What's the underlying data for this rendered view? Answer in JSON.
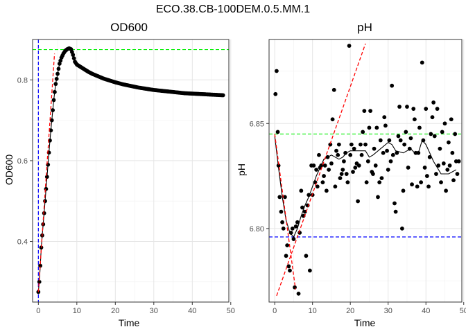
{
  "figure": {
    "title": "ECO.38.CB-100DEM.0.5.MM.1"
  },
  "chart_data": [
    {
      "type": "scatter",
      "title": "OD600",
      "xlabel": "Time",
      "ylabel": "OD600",
      "xlim": [
        -1.5,
        49.5
      ],
      "ylim": [
        0.25,
        0.9
      ],
      "x_ticks": [
        0,
        10,
        20,
        30,
        40,
        50
      ],
      "y_ticks": [
        0.4,
        0.6,
        0.8
      ],
      "x_tick_labels": [
        "0",
        "10",
        "20",
        "30",
        "40",
        "50"
      ],
      "y_tick_labels": [
        "0.4",
        "0.6",
        "0.8"
      ],
      "grid": true,
      "points_generation": "every 0.25 h from 0 to 48 (curve samples below, dense points)",
      "points": [
        [
          0.0,
          0.275
        ],
        [
          0.25,
          0.3
        ],
        [
          0.5,
          0.34
        ],
        [
          0.75,
          0.385
        ],
        [
          1.0,
          0.415
        ],
        [
          1.5,
          0.47
        ],
        [
          2.0,
          0.53
        ],
        [
          2.5,
          0.59
        ],
        [
          3.0,
          0.65
        ],
        [
          3.5,
          0.7
        ],
        [
          4.0,
          0.75
        ],
        [
          4.5,
          0.79
        ],
        [
          5.0,
          0.815
        ],
        [
          5.5,
          0.84
        ],
        [
          6.0,
          0.855
        ],
        [
          6.5,
          0.865
        ],
        [
          7.0,
          0.872
        ],
        [
          7.5,
          0.876
        ],
        [
          8.0,
          0.878
        ],
        [
          8.5,
          0.876
        ],
        [
          9.0,
          0.862
        ],
        [
          9.5,
          0.845
        ],
        [
          10.0,
          0.838
        ],
        [
          11.0,
          0.832
        ],
        [
          12.0,
          0.826
        ],
        [
          13.0,
          0.82
        ],
        [
          14.0,
          0.815
        ],
        [
          15.0,
          0.811
        ],
        [
          16.0,
          0.807
        ],
        [
          17.0,
          0.803
        ],
        [
          18.0,
          0.8
        ],
        [
          19.0,
          0.797
        ],
        [
          20.0,
          0.794
        ],
        [
          22.0,
          0.789
        ],
        [
          24.0,
          0.785
        ],
        [
          26.0,
          0.781
        ],
        [
          28.0,
          0.778
        ],
        [
          30.0,
          0.775
        ],
        [
          32.0,
          0.773
        ],
        [
          34.0,
          0.771
        ],
        [
          36.0,
          0.769
        ],
        [
          38.0,
          0.767
        ],
        [
          40.0,
          0.766
        ],
        [
          42.0,
          0.765
        ],
        [
          44.0,
          0.764
        ],
        [
          46.0,
          0.763
        ],
        [
          48.0,
          0.762
        ]
      ],
      "reference_lines": {
        "hline_green": 0.875,
        "vline_blue": 0.0,
        "red_tangent": {
          "from": [
            0.0,
            0.275
          ],
          "to": [
            4.2,
            0.865
          ]
        }
      },
      "colors": {
        "points": "#000000",
        "fit": "#000000",
        "tangent": "#ff0000",
        "max_line": "#00ee00",
        "start_line": "#0000ff"
      }
    },
    {
      "type": "scatter",
      "title": "pH",
      "xlabel": "Time",
      "ylabel": "pH",
      "xlim": [
        -1.5,
        49.5
      ],
      "ylim": [
        6.765,
        6.89
      ],
      "x_ticks": [
        0,
        10,
        20,
        30,
        40,
        50
      ],
      "y_ticks": [
        6.8,
        6.85
      ],
      "x_tick_labels": [
        "0",
        "10",
        "20",
        "30",
        "40",
        "50"
      ],
      "y_tick_labels": [
        "6.80",
        "6.85"
      ],
      "grid": true,
      "points": [
        [
          0.2,
          6.864
        ],
        [
          0.5,
          6.875
        ],
        [
          0.8,
          6.846
        ],
        [
          1.0,
          6.83
        ],
        [
          1.3,
          6.815
        ],
        [
          1.7,
          6.808
        ],
        [
          2.0,
          6.803
        ],
        [
          2.3,
          6.8
        ],
        [
          2.7,
          6.815
        ],
        [
          3.0,
          6.787
        ],
        [
          3.3,
          6.792
        ],
        [
          3.7,
          6.782
        ],
        [
          4.0,
          6.78
        ],
        [
          4.3,
          6.798
        ],
        [
          4.7,
          6.8
        ],
        [
          5.0,
          6.795
        ],
        [
          5.3,
          6.772
        ],
        [
          5.6,
          6.801
        ],
        [
          6.0,
          6.803
        ],
        [
          6.3,
          6.769
        ],
        [
          6.6,
          6.798
        ],
        [
          7.0,
          6.818
        ],
        [
          7.3,
          6.81
        ],
        [
          7.6,
          6.806
        ],
        [
          8.0,
          6.808
        ],
        [
          8.3,
          6.787
        ],
        [
          8.7,
          6.811
        ],
        [
          9.0,
          6.816
        ],
        [
          9.3,
          6.78
        ],
        [
          9.7,
          6.83
        ],
        [
          10.0,
          6.816
        ],
        [
          10.3,
          6.83
        ],
        [
          10.7,
          6.822
        ],
        [
          11.0,
          6.828
        ],
        [
          11.3,
          6.82
        ],
        [
          11.7,
          6.835
        ],
        [
          12.0,
          6.829
        ],
        [
          12.3,
          6.83
        ],
        [
          12.7,
          6.822
        ],
        [
          13.0,
          6.825
        ],
        [
          13.3,
          6.83
        ],
        [
          13.7,
          6.818
        ],
        [
          14.0,
          6.834
        ],
        [
          14.3,
          6.828
        ],
        [
          14.7,
          6.84
        ],
        [
          15.0,
          6.831
        ],
        [
          15.3,
          6.852
        ],
        [
          15.7,
          6.866
        ],
        [
          16.0,
          6.82
        ],
        [
          16.3,
          6.837
        ],
        [
          16.7,
          6.835
        ],
        [
          17.0,
          6.84
        ],
        [
          17.3,
          6.824
        ],
        [
          17.7,
          6.826
        ],
        [
          18.0,
          6.828
        ],
        [
          18.3,
          6.832
        ],
        [
          18.7,
          6.836
        ],
        [
          19.0,
          6.826
        ],
        [
          19.3,
          6.822
        ],
        [
          19.7,
          6.887
        ],
        [
          20.0,
          6.835
        ],
        [
          20.3,
          6.84
        ],
        [
          20.7,
          6.827
        ],
        [
          21.0,
          6.838
        ],
        [
          21.3,
          6.829
        ],
        [
          21.7,
          6.831
        ],
        [
          22.0,
          6.813
        ],
        [
          22.3,
          6.83
        ],
        [
          22.7,
          6.84
        ],
        [
          23.0,
          6.835
        ],
        [
          23.3,
          6.846
        ],
        [
          23.7,
          6.856
        ],
        [
          24.0,
          6.84
        ],
        [
          24.3,
          6.822
        ],
        [
          24.7,
          6.832
        ],
        [
          25.0,
          6.848
        ],
        [
          25.3,
          6.856
        ],
        [
          25.7,
          6.827
        ],
        [
          26.0,
          6.826
        ],
        [
          26.3,
          6.838
        ],
        [
          26.7,
          6.83
        ],
        [
          27.0,
          6.848
        ],
        [
          27.3,
          6.815
        ],
        [
          27.7,
          6.822
        ],
        [
          28.0,
          6.842
        ],
        [
          28.3,
          6.824
        ],
        [
          28.7,
          6.836
        ],
        [
          29.0,
          6.853
        ],
        [
          29.3,
          6.849
        ],
        [
          29.7,
          6.837
        ],
        [
          30.0,
          6.828
        ],
        [
          30.3,
          6.842
        ],
        [
          30.7,
          6.832
        ],
        [
          31.0,
          6.868
        ],
        [
          31.3,
          6.835
        ],
        [
          31.7,
          6.812
        ],
        [
          32.0,
          6.808
        ],
        [
          32.3,
          6.836
        ],
        [
          32.7,
          6.844
        ],
        [
          33.0,
          6.858
        ],
        [
          33.3,
          6.842
        ],
        [
          33.7,
          6.8
        ],
        [
          34.0,
          6.818
        ],
        [
          34.3,
          6.84
        ],
        [
          34.7,
          6.846
        ],
        [
          35.0,
          6.858
        ],
        [
          35.3,
          6.829
        ],
        [
          35.7,
          6.838
        ],
        [
          36.0,
          6.843
        ],
        [
          36.3,
          6.821
        ],
        [
          36.7,
          6.857
        ],
        [
          37.0,
          6.852
        ],
        [
          37.3,
          6.836
        ],
        [
          37.7,
          6.82
        ],
        [
          38.0,
          6.836
        ],
        [
          38.3,
          6.848
        ],
        [
          38.7,
          6.822
        ],
        [
          39.0,
          6.879
        ],
        [
          39.3,
          6.842
        ],
        [
          39.7,
          6.829
        ],
        [
          40.0,
          6.857
        ],
        [
          40.3,
          6.825
        ],
        [
          40.7,
          6.82
        ],
        [
          41.0,
          6.834
        ],
        [
          41.3,
          6.845
        ],
        [
          41.7,
          6.853
        ],
        [
          42.0,
          6.86
        ],
        [
          42.3,
          6.844
        ],
        [
          42.7,
          6.826
        ],
        [
          43.0,
          6.857
        ],
        [
          43.3,
          6.83
        ],
        [
          43.7,
          6.838
        ],
        [
          44.0,
          6.822
        ],
        [
          44.3,
          6.846
        ],
        [
          44.7,
          6.831
        ],
        [
          45.0,
          6.85
        ],
        [
          45.3,
          6.818
        ],
        [
          45.7,
          6.828
        ],
        [
          46.0,
          6.841
        ],
        [
          46.3,
          6.83
        ],
        [
          46.7,
          6.852
        ],
        [
          47.0,
          6.836
        ],
        [
          47.3,
          6.823
        ],
        [
          47.7,
          6.845
        ],
        [
          48.0,
          6.832
        ],
        [
          48.3,
          6.826
        ],
        [
          48.7,
          6.832
        ]
      ],
      "fit_curve": [
        [
          0.0,
          6.844
        ],
        [
          1.0,
          6.829
        ],
        [
          2.0,
          6.815
        ],
        [
          3.0,
          6.804
        ],
        [
          4.0,
          6.798
        ],
        [
          5.0,
          6.796
        ],
        [
          6.0,
          6.8
        ],
        [
          7.0,
          6.806
        ],
        [
          8.0,
          6.811
        ],
        [
          9.0,
          6.815
        ],
        [
          10.0,
          6.82
        ],
        [
          11.0,
          6.825
        ],
        [
          12.0,
          6.829
        ],
        [
          13.0,
          6.833
        ],
        [
          14.0,
          6.834
        ],
        [
          15.0,
          6.835
        ],
        [
          16.0,
          6.834
        ],
        [
          17.0,
          6.833
        ],
        [
          18.0,
          6.834
        ],
        [
          19.0,
          6.836
        ],
        [
          20.0,
          6.837
        ],
        [
          22.0,
          6.837
        ],
        [
          24.0,
          6.837
        ],
        [
          25.0,
          6.834
        ],
        [
          26.0,
          6.835
        ],
        [
          28.0,
          6.838
        ],
        [
          30.0,
          6.841
        ],
        [
          31.0,
          6.84
        ],
        [
          32.0,
          6.837
        ],
        [
          34.0,
          6.836
        ],
        [
          36.0,
          6.838
        ],
        [
          37.0,
          6.836
        ],
        [
          38.0,
          6.836
        ],
        [
          39.0,
          6.842
        ],
        [
          40.0,
          6.84
        ],
        [
          41.0,
          6.836
        ],
        [
          42.0,
          6.832
        ],
        [
          43.0,
          6.829
        ],
        [
          44.0,
          6.826
        ],
        [
          46.0,
          6.826
        ],
        [
          48.0,
          6.828
        ]
      ],
      "reference_lines": {
        "hline_green": 6.845,
        "hline_blue": 6.796,
        "red_descent": {
          "from": [
            0.0,
            6.845
          ],
          "to": [
            5.5,
            6.771
          ]
        },
        "red_rise": {
          "from": [
            0.5,
            6.768
          ],
          "to": [
            24.0,
            6.888
          ]
        }
      },
      "colors": {
        "points": "#000000",
        "fit": "#000000",
        "tangent": "#ff0000",
        "max_line": "#00ee00",
        "min_line": "#0000ff"
      }
    }
  ]
}
